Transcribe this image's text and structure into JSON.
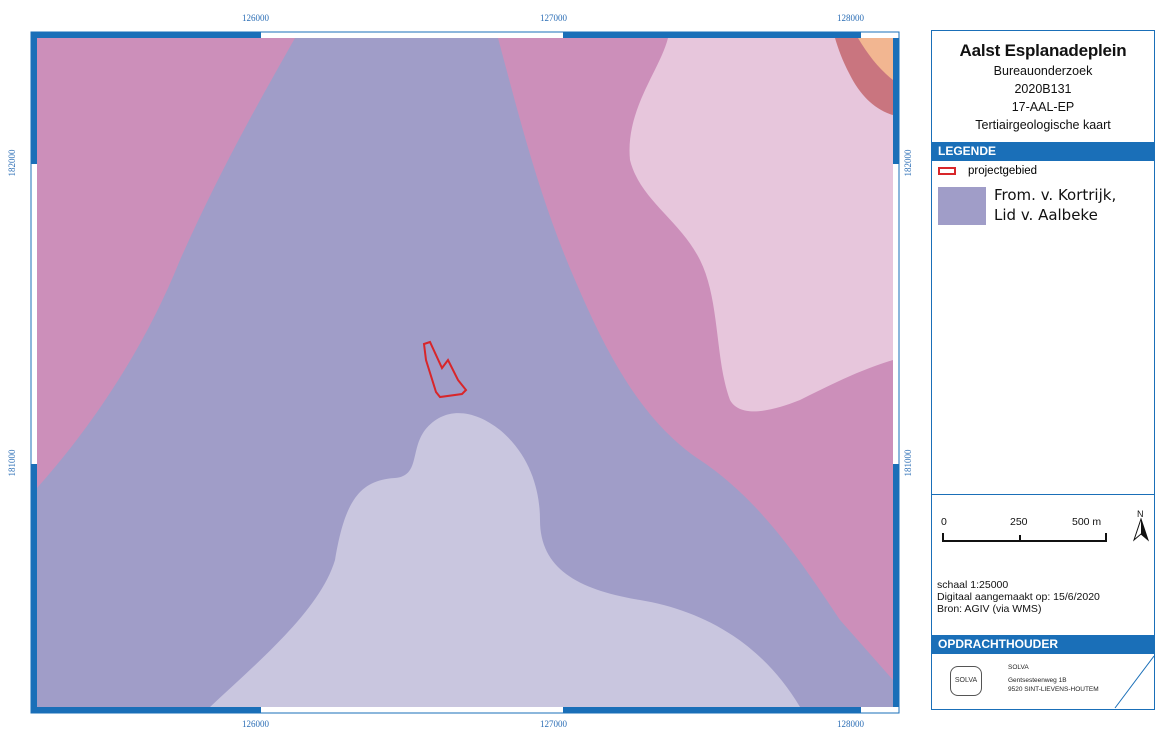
{
  "map": {
    "top_ticks": [
      "126000",
      "127000",
      "128000"
    ],
    "bottom_ticks": [
      "126000",
      "127000",
      "128000"
    ],
    "left_ticks": [
      "182000",
      "181000"
    ],
    "right_ticks": [
      "182000",
      "181000"
    ],
    "colors": {
      "frame": "#1a6fb8",
      "pink_unit": "#cc8fba",
      "purple_unit": "#a09dc8",
      "light_purple_unit": "#c9c6df",
      "light_pink_unit": "#e7c6dc",
      "dark_red_unit": "#c9757f",
      "orange_unit": "#f2b691",
      "project_outline": "#d8262a"
    }
  },
  "panel": {
    "title": "Aalst Esplanadeplein",
    "lines": [
      "Bureauonderzoek",
      "2020B131",
      "17-AAL-EP",
      "Tertiairgeologische kaart"
    ],
    "legend_header": "LEGENDE",
    "legend_project_label": "projectgebied",
    "legend_unit_label_1": "From. v. Kortrijk,",
    "legend_unit_label_2": "Lid v. Aalbeke",
    "scale_labels": [
      "0",
      "250",
      "500 m"
    ],
    "north_label": "N",
    "schaal": "schaal   1:25000",
    "digitaal": "Digitaal aangemaakt op: 15/6/2020",
    "bron": "Bron: AGIV (via WMS)",
    "opdrachthouder_header": "OPDRACHTHOUDER",
    "logo_text": "SOLVA",
    "company_name": "SOLVA",
    "company_address_1": "Gentsesteenweg 1B",
    "company_address_2": "9520 SINT-LIEVENS-HOUTEM"
  }
}
